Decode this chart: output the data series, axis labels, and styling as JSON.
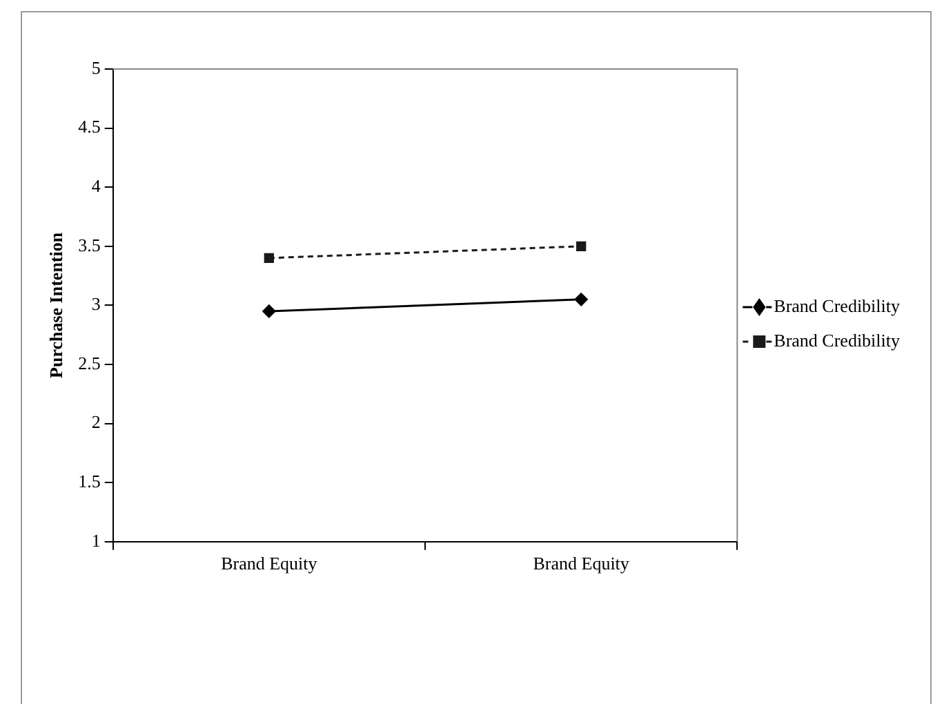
{
  "chart_data": {
    "type": "line",
    "ylabel": "Purchase Intention",
    "categories": [
      "Brand Equity",
      "Brand Equity"
    ],
    "series": [
      {
        "name": "Brand Credibility",
        "color": "#000000",
        "values": [
          2.95,
          3.05
        ],
        "marker": "diamond",
        "line_style": "solid"
      },
      {
        "name": "Brand Credibility",
        "color": "#1a1a1a",
        "values": [
          3.4,
          3.5
        ],
        "marker": "square",
        "line_style": "dashed"
      }
    ],
    "ylim": [
      1,
      5
    ],
    "yticks": [
      1,
      1.5,
      2,
      2.5,
      3,
      3.5,
      4,
      4.5,
      5
    ],
    "grid": false,
    "legend": "right"
  }
}
